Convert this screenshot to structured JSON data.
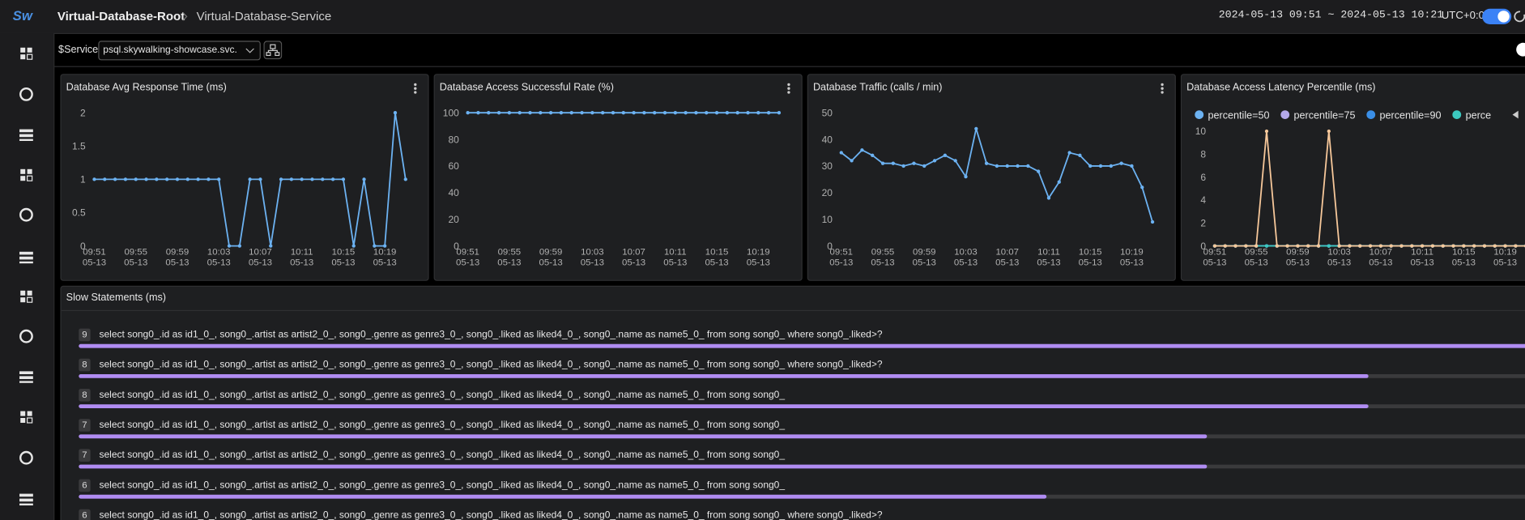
{
  "header": {
    "logo": "Sw",
    "breadcrumb": [
      "Virtual-Database-Root",
      "Virtual-Database-Service"
    ],
    "time_range": "2024-05-13 09:51 ~ 2024-05-13 10:21",
    "timezone": "UTC+0:0"
  },
  "toolbar": {
    "label": "$Service",
    "service": "psql.skywalking-showcase.svc."
  },
  "panels": [
    {
      "title": "Database Avg Response Time (ms)",
      "chart_data": {
        "type": "line",
        "grid": false,
        "categories": [
          [
            "09:51",
            "05-13"
          ],
          null,
          null,
          null,
          [
            "09:55",
            "05-13"
          ],
          null,
          null,
          null,
          [
            "09:59",
            "05-13"
          ],
          null,
          null,
          null,
          [
            "10:03",
            "05-13"
          ],
          null,
          null,
          null,
          [
            "10:07",
            "05-13"
          ],
          null,
          null,
          null,
          [
            "10:11",
            "05-13"
          ],
          null,
          null,
          null,
          [
            "10:15",
            "05-13"
          ],
          null,
          null,
          null,
          [
            "10:19",
            "05-13"
          ],
          null,
          null
        ],
        "series": [
          {
            "color": "#6cb2f2",
            "values": [
              1,
              1,
              1,
              1,
              1,
              1,
              1,
              1,
              1,
              1,
              1,
              1,
              1,
              0,
              0,
              1,
              1,
              0,
              1,
              1,
              1,
              1,
              1,
              1,
              1,
              0,
              1,
              0,
              0,
              2,
              1
            ]
          }
        ],
        "ylim": [
          0,
          2
        ],
        "yticks": [
          0,
          0.5,
          1,
          1.5,
          2
        ]
      }
    },
    {
      "title": "Database Access Successful Rate (%)",
      "chart_data": {
        "type": "line",
        "grid": false,
        "categories": [
          [
            "09:51",
            "05-13"
          ],
          null,
          null,
          null,
          [
            "09:55",
            "05-13"
          ],
          null,
          null,
          null,
          [
            "09:59",
            "05-13"
          ],
          null,
          null,
          null,
          [
            "10:03",
            "05-13"
          ],
          null,
          null,
          null,
          [
            "10:07",
            "05-13"
          ],
          null,
          null,
          null,
          [
            "10:11",
            "05-13"
          ],
          null,
          null,
          null,
          [
            "10:15",
            "05-13"
          ],
          null,
          null,
          null,
          [
            "10:19",
            "05-13"
          ],
          null,
          null
        ],
        "series": [
          {
            "color": "#6cb2f2",
            "values": [
              100,
              100,
              100,
              100,
              100,
              100,
              100,
              100,
              100,
              100,
              100,
              100,
              100,
              100,
              100,
              100,
              100,
              100,
              100,
              100,
              100,
              100,
              100,
              100,
              100,
              100,
              100,
              100,
              100,
              100,
              100
            ]
          }
        ],
        "ylim": [
          0,
          100
        ],
        "yticks": [
          0,
          20,
          40,
          60,
          80,
          100
        ]
      }
    },
    {
      "title": "Database Traffic (calls / min)",
      "chart_data": {
        "type": "line",
        "grid": false,
        "categories": [
          [
            "09:51",
            "05-13"
          ],
          null,
          null,
          null,
          [
            "09:55",
            "05-13"
          ],
          null,
          null,
          null,
          [
            "09:59",
            "05-13"
          ],
          null,
          null,
          null,
          [
            "10:03",
            "05-13"
          ],
          null,
          null,
          null,
          [
            "10:07",
            "05-13"
          ],
          null,
          null,
          null,
          [
            "10:11",
            "05-13"
          ],
          null,
          null,
          null,
          [
            "10:15",
            "05-13"
          ],
          null,
          null,
          null,
          [
            "10:19",
            "05-13"
          ],
          null,
          null
        ],
        "series": [
          {
            "color": "#6cb2f2",
            "values": [
              35,
              32,
              36,
              34,
              31,
              31,
              30,
              31,
              30,
              32,
              34,
              32,
              26,
              44,
              31,
              30,
              30,
              30,
              30,
              28,
              18,
              24,
              35,
              34,
              30,
              30,
              30,
              31,
              30,
              22,
              9
            ]
          }
        ],
        "ylim": [
          0,
          50
        ],
        "yticks": [
          0,
          10,
          20,
          30,
          40,
          50
        ]
      }
    },
    {
      "title": "Database Access Latency Percentile (ms)",
      "chart_data": {
        "type": "line",
        "grid": false,
        "categories": [
          [
            "09:51",
            "05-13"
          ],
          null,
          null,
          null,
          [
            "09:55",
            "05-13"
          ],
          null,
          null,
          null,
          [
            "09:59",
            "05-13"
          ],
          null,
          null,
          null,
          [
            "10:03",
            "05-13"
          ],
          null,
          null,
          null,
          [
            "10:07",
            "05-13"
          ],
          null,
          null,
          null,
          [
            "10:11",
            "05-13"
          ],
          null,
          null,
          null,
          [
            "10:15",
            "05-13"
          ],
          null,
          null,
          null,
          [
            "10:19",
            "05-13"
          ],
          null,
          null
        ],
        "series": [
          {
            "name": "percentile=50",
            "color": "#6cb2f2",
            "values": [
              0,
              0,
              0,
              0,
              0,
              0,
              0,
              0,
              0,
              0,
              0,
              0,
              0,
              0,
              0,
              0,
              0,
              0,
              0,
              0,
              0,
              0,
              0,
              0,
              0,
              0,
              0,
              0,
              0,
              0,
              0
            ]
          },
          {
            "name": "percentile=75",
            "color": "#b4a8ea",
            "values": [
              0,
              0,
              0,
              0,
              0,
              0,
              0,
              0,
              0,
              0,
              0,
              0,
              0,
              0,
              0,
              0,
              0,
              0,
              0,
              0,
              0,
              0,
              0,
              0,
              0,
              0,
              0,
              0,
              0,
              0,
              0
            ]
          },
          {
            "name": "percentile=90",
            "color": "#3a8ee6",
            "values": [
              0,
              0,
              0,
              0,
              0,
              0,
              0,
              0,
              0,
              0,
              0,
              0,
              0,
              0,
              0,
              0,
              0,
              0,
              0,
              0,
              0,
              0,
              0,
              0,
              0,
              0,
              0,
              0,
              0,
              0,
              0
            ]
          },
          {
            "name": "perce",
            "color": "#3cc9c0",
            "values": [
              0,
              0,
              0,
              0,
              0,
              0,
              0,
              0,
              0,
              0,
              0,
              0,
              0,
              0,
              0,
              0,
              0,
              0,
              0,
              0,
              0,
              0,
              0,
              0,
              0,
              0,
              0,
              0,
              0,
              0,
              0
            ]
          },
          {
            "color": "#f6c79a",
            "values": [
              0,
              0,
              0,
              0,
              0,
              10,
              0,
              0,
              0,
              0,
              0,
              10,
              0,
              0,
              0,
              0,
              0,
              0,
              0,
              0,
              0,
              0,
              0,
              0,
              0,
              0,
              0,
              0,
              0,
              0,
              0
            ]
          }
        ],
        "ylim": [
          0,
          10
        ],
        "yticks": [
          0,
          2,
          4,
          6,
          8,
          10
        ]
      }
    }
  ],
  "slow_statements": {
    "title": "Slow Statements (ms)",
    "rows": [
      {
        "value": 9,
        "statement": "select song0_.id as id1_0_, song0_.artist as artist2_0_, song0_.genre as genre3_0_, song0_.liked as liked4_0_, song0_.name as name5_0_ from song song0_ where song0_.liked>?"
      },
      {
        "value": 8,
        "statement": "select song0_.id as id1_0_, song0_.artist as artist2_0_, song0_.genre as genre3_0_, song0_.liked as liked4_0_, song0_.name as name5_0_ from song song0_ where song0_.liked>?"
      },
      {
        "value": 8,
        "statement": "select song0_.id as id1_0_, song0_.artist as artist2_0_, song0_.genre as genre3_0_, song0_.liked as liked4_0_, song0_.name as name5_0_ from song song0_"
      },
      {
        "value": 7,
        "statement": "select song0_.id as id1_0_, song0_.artist as artist2_0_, song0_.genre as genre3_0_, song0_.liked as liked4_0_, song0_.name as name5_0_ from song song0_"
      },
      {
        "value": 7,
        "statement": "select song0_.id as id1_0_, song0_.artist as artist2_0_, song0_.genre as genre3_0_, song0_.liked as liked4_0_, song0_.name as name5_0_ from song song0_"
      },
      {
        "value": 6,
        "statement": "select song0_.id as id1_0_, song0_.artist as artist2_0_, song0_.genre as genre3_0_, song0_.liked as liked4_0_, song0_.name as name5_0_ from song song0_"
      },
      {
        "value": 6,
        "statement": "select song0_.id as id1_0_, song0_.artist as artist2_0_, song0_.genre as genre3_0_, song0_.liked as liked4_0_, song0_.name as name5_0_ from song song0_ where song0_.liked>?"
      }
    ]
  }
}
